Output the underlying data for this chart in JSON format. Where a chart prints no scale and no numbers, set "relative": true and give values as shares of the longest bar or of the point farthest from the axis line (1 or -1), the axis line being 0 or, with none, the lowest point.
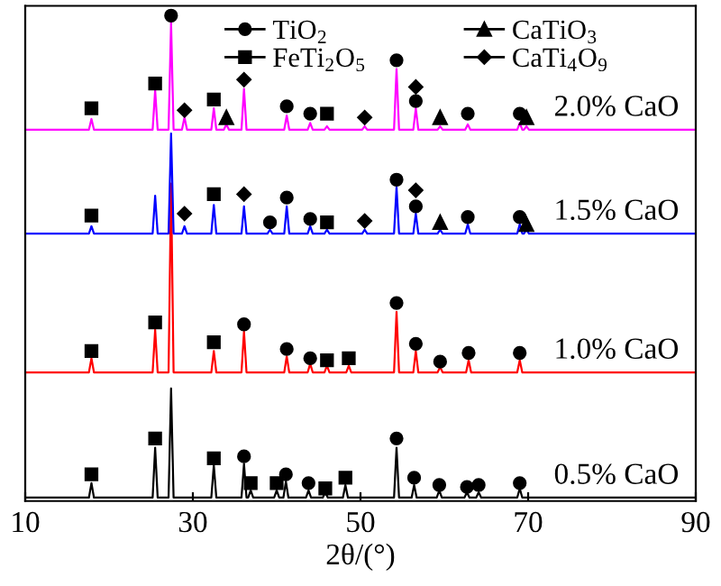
{
  "chart_data": {
    "type": "line",
    "relative": true,
    "xlabel": "2θ/(°)",
    "xlim": [
      10,
      90
    ],
    "xticks": [
      10,
      30,
      50,
      70,
      90
    ],
    "grid": false,
    "legend": "top right",
    "line_style": "solid",
    "series": [
      {
        "name": "0.5% CaO",
        "color": "#000000",
        "x": [
          10,
          17.6,
          17.9,
          18.2,
          25.2,
          25.5,
          25.8,
          27.1,
          27.4,
          27.7,
          32.2,
          32.5,
          32.8,
          35.8,
          36.1,
          36.4,
          36.6,
          36.9,
          37.2,
          39.7,
          40.0,
          40.3,
          40.8,
          41.1,
          41.4,
          43.5,
          43.8,
          44.1,
          45.5,
          45.8,
          46.1,
          47.9,
          48.2,
          48.5,
          54.0,
          54.3,
          54.6,
          56.1,
          56.4,
          56.7,
          59.1,
          59.4,
          59.7,
          62.4,
          62.7,
          63.0,
          63.8,
          64.1,
          64.4,
          68.7,
          69.0,
          69.3,
          90
        ],
        "values": [
          0.007,
          0.007,
          0.037,
          0.007,
          0.007,
          0.11,
          0.007,
          0.007,
          0.232,
          0.007,
          0.007,
          0.074,
          0.007,
          0.007,
          0.077,
          0.007,
          0.007,
          0.022,
          0.007,
          0.007,
          0.022,
          0.007,
          0.007,
          0.04,
          0.007,
          0.007,
          0.022,
          0.007,
          0.007,
          0.018,
          0.007,
          0.007,
          0.033,
          0.007,
          0.007,
          0.11,
          0.007,
          0.007,
          0.033,
          0.007,
          0.007,
          0.022,
          0.007,
          0.007,
          0.018,
          0.007,
          0.007,
          0.018,
          0.007,
          0.007,
          0.026,
          0.007,
          0.007
        ]
      },
      {
        "name": "1.0% CaO",
        "color": "#ff0000",
        "x": [
          10,
          17.6,
          17.9,
          18.2,
          25.2,
          25.5,
          25.8,
          27.1,
          27.4,
          27.7,
          32.2,
          32.5,
          32.8,
          35.8,
          36.1,
          36.4,
          40.9,
          41.2,
          41.5,
          43.7,
          44.0,
          44.3,
          45.7,
          46.0,
          46.3,
          48.3,
          48.6,
          48.9,
          54.0,
          54.3,
          54.6,
          56.3,
          56.6,
          56.9,
          59.2,
          59.5,
          59.8,
          62.6,
          62.9,
          63.2,
          68.7,
          69.0,
          69.3,
          90
        ],
        "values": [
          0.265,
          0.265,
          0.294,
          0.265,
          0.265,
          0.353,
          0.265,
          0.265,
          0.654,
          0.265,
          0.265,
          0.309,
          0.265,
          0.265,
          0.349,
          0.265,
          0.265,
          0.298,
          0.265,
          0.265,
          0.283,
          0.265,
          0.265,
          0.279,
          0.265,
          0.265,
          0.279,
          0.265,
          0.265,
          0.39,
          0.265,
          0.265,
          0.309,
          0.265,
          0.265,
          0.276,
          0.265,
          0.265,
          0.29,
          0.265,
          0.265,
          0.29,
          0.265,
          0.265
        ]
      },
      {
        "name": "1.5% CaO",
        "color": "#0000ff",
        "x": [
          10,
          17.6,
          17.9,
          18.2,
          25.2,
          25.5,
          25.8,
          27.1,
          27.4,
          27.7,
          28.7,
          29.0,
          29.3,
          32.2,
          32.5,
          32.8,
          35.8,
          36.1,
          36.4,
          38.9,
          39.2,
          39.5,
          40.9,
          41.2,
          41.5,
          43.7,
          44.0,
          44.3,
          45.7,
          46.0,
          46.3,
          50.2,
          50.5,
          50.8,
          54.0,
          54.3,
          54.6,
          56.3,
          56.6,
          56.9,
          59.2,
          59.5,
          59.8,
          62.5,
          62.8,
          63.1,
          68.7,
          69.0,
          69.3,
          69.5,
          69.8,
          70.1,
          90
        ],
        "values": [
          0.551,
          0.551,
          0.566,
          0.551,
          0.551,
          0.629,
          0.551,
          0.551,
          0.757,
          0.551,
          0.551,
          0.566,
          0.551,
          0.551,
          0.61,
          0.551,
          0.551,
          0.607,
          0.551,
          0.551,
          0.559,
          0.551,
          0.551,
          0.607,
          0.551,
          0.551,
          0.566,
          0.551,
          0.551,
          0.559,
          0.551,
          0.551,
          0.559,
          0.551,
          0.551,
          0.647,
          0.551,
          0.551,
          0.592,
          0.551,
          0.551,
          0.559,
          0.551,
          0.551,
          0.57,
          0.551,
          0.551,
          0.57,
          0.551,
          0.551,
          0.559,
          0.551,
          0.551
        ]
      },
      {
        "name": "2.0% CaO",
        "color": "#ff00ff",
        "x": [
          10,
          17.6,
          17.9,
          18.2,
          25.2,
          25.5,
          25.8,
          27.1,
          27.4,
          27.7,
          28.7,
          29.0,
          29.3,
          32.2,
          32.5,
          32.8,
          33.7,
          34.0,
          34.3,
          35.8,
          36.1,
          36.4,
          40.9,
          41.2,
          41.5,
          43.7,
          44.0,
          44.3,
          45.7,
          46.0,
          46.3,
          50.2,
          50.5,
          50.8,
          54.0,
          54.3,
          54.6,
          56.3,
          56.6,
          56.9,
          59.2,
          59.5,
          59.8,
          62.5,
          62.8,
          63.1,
          68.7,
          69.0,
          69.3,
          69.5,
          69.8,
          70.1,
          90
        ],
        "values": [
          0.765,
          0.765,
          0.787,
          0.765,
          0.765,
          0.846,
          0.765,
          0.765,
          0.985,
          0.765,
          0.765,
          0.79,
          0.765,
          0.765,
          0.809,
          0.765,
          0.765,
          0.776,
          0.765,
          0.765,
          0.849,
          0.765,
          0.765,
          0.794,
          0.765,
          0.765,
          0.779,
          0.765,
          0.765,
          0.772,
          0.765,
          0.765,
          0.772,
          0.765,
          0.765,
          0.89,
          0.765,
          0.765,
          0.809,
          0.765,
          0.765,
          0.772,
          0.765,
          0.765,
          0.776,
          0.765,
          0.765,
          0.779,
          0.765,
          0.765,
          0.772,
          0.765,
          0.765
        ]
      },
      {
        "name": "TiO$_{2}$",
        "type": "scatter",
        "marker": "circle",
        "color": "#000000",
        "x": [
          27.4,
          41.2,
          44.0,
          54.3,
          56.6,
          62.8,
          69.0,
          39.2,
          41.2,
          44.0,
          54.3,
          56.6,
          62.8,
          69.0,
          36.1,
          41.2,
          44.0,
          54.3,
          56.6,
          59.5,
          62.9,
          69.0,
          36.1,
          41.1,
          43.8,
          54.3,
          56.4,
          59.4,
          62.7,
          64.1,
          69.0
        ],
        "values": [
          1.0,
          0.813,
          0.798,
          0.908,
          0.824,
          0.798,
          0.798,
          0.574,
          0.625,
          0.581,
          0.662,
          0.607,
          0.585,
          0.585,
          0.364,
          0.313,
          0.294,
          0.408,
          0.324,
          0.287,
          0.305,
          0.305,
          0.092,
          0.055,
          0.037,
          0.129,
          0.048,
          0.033,
          0.029,
          0.033,
          0.037
        ]
      },
      {
        "name": "FeTi$_{2}$O$_{5}$",
        "type": "scatter",
        "marker": "square",
        "color": "#000000",
        "x": [
          17.9,
          25.5,
          32.5,
          46.0,
          17.9,
          32.5,
          46.0,
          17.9,
          25.5,
          32.5,
          46.0,
          48.6,
          17.9,
          25.5,
          32.5,
          36.9,
          40.0,
          45.8,
          48.2
        ],
        "values": [
          0.809,
          0.86,
          0.827,
          0.798,
          0.588,
          0.632,
          0.574,
          0.309,
          0.368,
          0.327,
          0.29,
          0.294,
          0.055,
          0.129,
          0.088,
          0.037,
          0.037,
          0.026,
          0.048
        ]
      },
      {
        "name": "CaTiO$_{3}$",
        "type": "scatter",
        "marker": "triangle",
        "color": "#000000",
        "x": [
          34.0,
          59.5,
          69.8,
          59.5,
          69.8
        ],
        "values": [
          0.79,
          0.79,
          0.79,
          0.574,
          0.57
        ]
      },
      {
        "name": "CaTi$_{4}$O$_{9}$",
        "type": "scatter",
        "marker": "diamond",
        "color": "#000000",
        "x": [
          29.0,
          36.1,
          50.5,
          56.6,
          29.0,
          36.1,
          50.5,
          56.6
        ],
        "values": [
          0.805,
          0.868,
          0.79,
          0.853,
          0.592,
          0.632,
          0.577,
          0.64
        ]
      }
    ]
  }
}
